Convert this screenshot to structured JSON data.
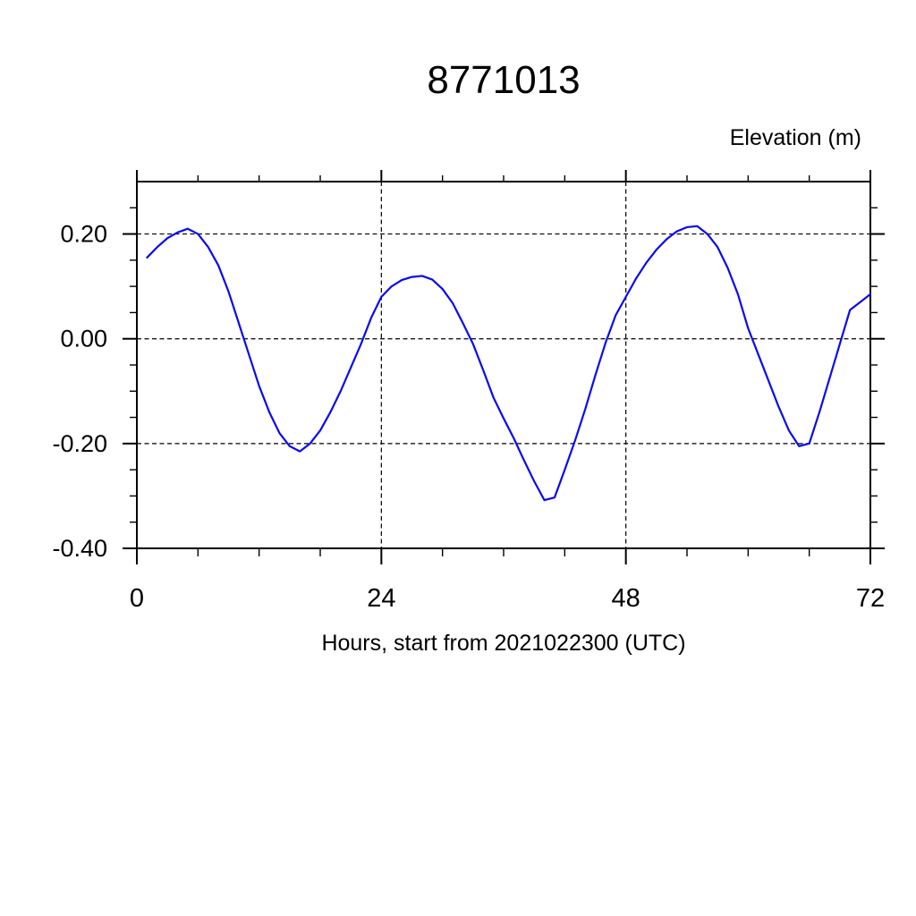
{
  "page": {
    "background": "#ffffff"
  },
  "chart_data": {
    "type": "line",
    "title": "8771013",
    "ylabel": "Elevation (m)",
    "xlabel": "Hours, start from 2021022300 (UTC)",
    "xlim": [
      0,
      72
    ],
    "ylim": [
      -0.4,
      0.3
    ],
    "x_major_ticks": [
      0,
      24,
      48,
      72
    ],
    "x_major_labels": [
      "0",
      "24",
      "48",
      "72"
    ],
    "x_minor_step": 6,
    "y_major_ticks": [
      0.2,
      0.0,
      -0.2,
      -0.4
    ],
    "y_major_labels": [
      "0.20",
      "0.00",
      "-0.20",
      "-0.40"
    ],
    "y_minor_step": 0.05,
    "grid_x": [
      24,
      48,
      72
    ],
    "grid_y": [
      0.2,
      0.0,
      -0.2,
      -0.4
    ],
    "grid_style": "dashed",
    "legend": "none",
    "axis_color": "#000000",
    "line_color": "#0a0af2",
    "series": [
      {
        "name": "elevation",
        "x": [
          1,
          2,
          3,
          4,
          5,
          6,
          7,
          8,
          9,
          10,
          11,
          12,
          13,
          14,
          15,
          16,
          17,
          18,
          19,
          20,
          21,
          22,
          23,
          24,
          25,
          26,
          27,
          28,
          29,
          30,
          31,
          32,
          33,
          34,
          35,
          36,
          37,
          38,
          39,
          40,
          41,
          42,
          43,
          44,
          45,
          46,
          47,
          48,
          49,
          50,
          51,
          52,
          53,
          54,
          55,
          56,
          57,
          58,
          59,
          60,
          61,
          62,
          63,
          64,
          65,
          66,
          67,
          68,
          69,
          70,
          71,
          72
        ],
        "values": [
          0.155,
          0.175,
          0.192,
          0.203,
          0.21,
          0.2,
          0.175,
          0.14,
          0.09,
          0.03,
          -0.03,
          -0.09,
          -0.14,
          -0.18,
          -0.205,
          -0.215,
          -0.2,
          -0.175,
          -0.14,
          -0.1,
          -0.055,
          -0.01,
          0.04,
          0.08,
          0.1,
          0.112,
          0.118,
          0.12,
          0.113,
          0.095,
          0.068,
          0.03,
          -0.01,
          -0.06,
          -0.112,
          -0.152,
          -0.19,
          -0.232,
          -0.272,
          -0.308,
          -0.303,
          -0.25,
          -0.195,
          -0.135,
          -0.07,
          -0.008,
          0.045,
          0.08,
          0.115,
          0.145,
          0.17,
          0.19,
          0.205,
          0.213,
          0.215,
          0.2,
          0.175,
          0.135,
          0.085,
          0.02,
          -0.03,
          -0.08,
          -0.13,
          -0.175,
          -0.205,
          -0.2,
          -0.14,
          -0.075,
          -0.01,
          0.055,
          0.07,
          0.085
        ]
      }
    ]
  }
}
